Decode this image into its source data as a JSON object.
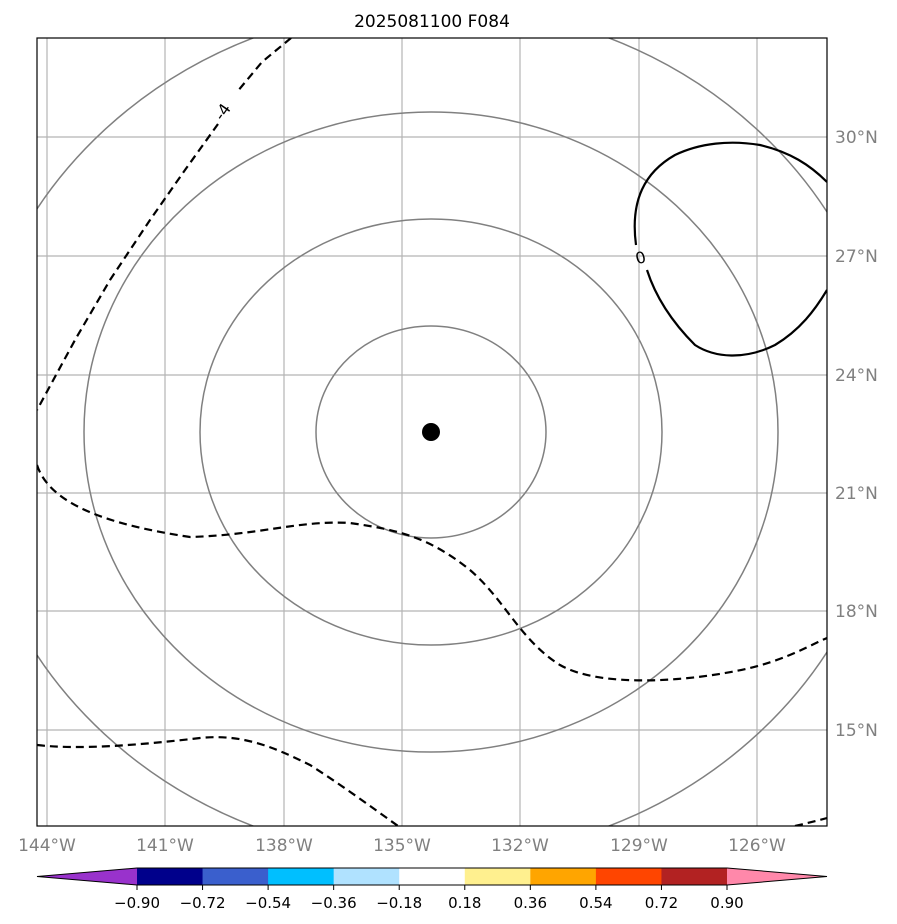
{
  "title": "2025081100 F084",
  "map": {
    "longitudes": [
      "144°W",
      "141°W",
      "138°W",
      "135°W",
      "132°W",
      "129°W",
      "126°W"
    ],
    "latitudes": [
      "30°N",
      "27°N",
      "24°N",
      "21°N",
      "18°N",
      "15°N"
    ],
    "storm_center": {
      "lon": "133.7°W",
      "lat": "22.5°N"
    },
    "range_rings_count": 4,
    "contour_labels": [
      "-4",
      "0"
    ]
  },
  "colorbar": {
    "ticks": [
      "−0.90",
      "−0.72",
      "−0.54",
      "−0.36",
      "−0.18",
      "0.18",
      "0.36",
      "0.54",
      "0.72",
      "0.90"
    ],
    "colors": [
      "#9932cc",
      "#00008b",
      "#3a5fcd",
      "#00bfff",
      "#b0e2ff",
      "#ffffff",
      "#fff08f",
      "#ffa500",
      "#ff4500",
      "#b22222",
      "#ff88aa"
    ]
  }
}
